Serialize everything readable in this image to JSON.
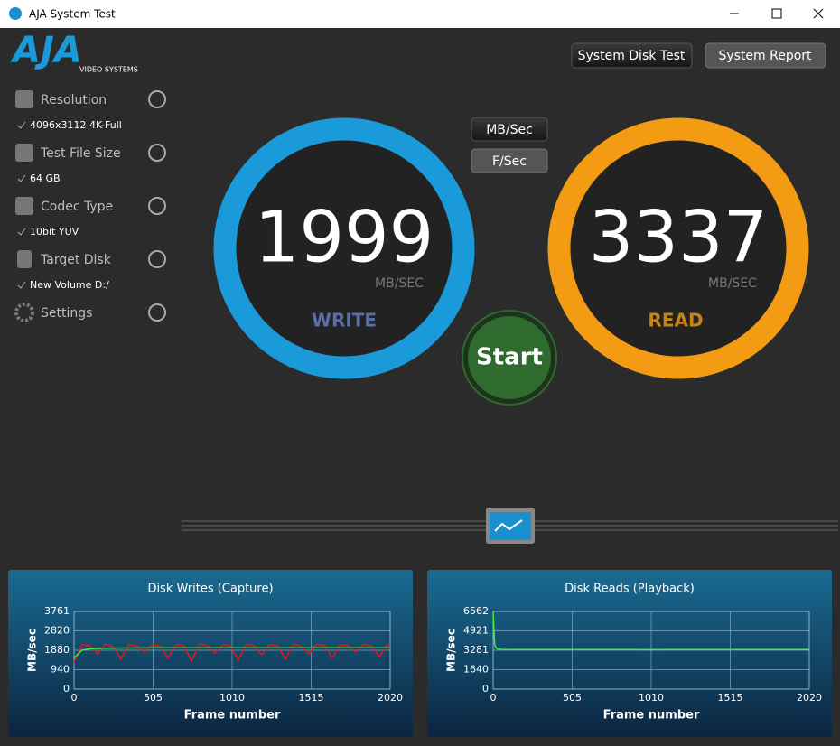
{
  "window_title": "AJA System Test",
  "logo": {
    "brand": "AJA",
    "sub": "VIDEO SYSTEMS"
  },
  "buttons": {
    "disk_test": "System Disk Test",
    "report": "System Report",
    "unit_mb": "MB/Sec",
    "unit_f": "F/Sec",
    "start": "Start"
  },
  "sidebar": [
    {
      "label": "Resolution",
      "value": "4096x3112 4K-Full"
    },
    {
      "label": "Test File Size",
      "value": "64 GB"
    },
    {
      "label": "Codec Type",
      "value": "10bit YUV"
    },
    {
      "label": "Target Disk",
      "value": "New Volume D:/"
    },
    {
      "label": "Settings"
    }
  ],
  "gauges": {
    "write": {
      "value": 1999,
      "unit": "MB/SEC",
      "label": "WRITE",
      "color": "#1a9ad8"
    },
    "read": {
      "value": 3337,
      "unit": "MB/SEC",
      "label": "READ",
      "color": "#f29b13"
    }
  },
  "chart_data": [
    {
      "type": "line",
      "title": "Disk Writes (Capture)",
      "x_label": "Frame number",
      "y_label": "MB/sec",
      "x": [
        0,
        50,
        100,
        150,
        200,
        250,
        300,
        350,
        400,
        450,
        500,
        550,
        600,
        650,
        700,
        750,
        800,
        850,
        900,
        950,
        1000,
        1050,
        1100,
        1150,
        1200,
        1250,
        1300,
        1350,
        1400,
        1450,
        1500,
        1550,
        1600,
        1650,
        1700,
        1750,
        1800,
        1850,
        1900,
        1950,
        2000,
        2020
      ],
      "series": [
        {
          "color": "#e8141b",
          "values": [
            1300,
            2150,
            2100,
            1700,
            2180,
            2050,
            1450,
            2160,
            2100,
            1800,
            2170,
            2080,
            1500,
            2150,
            2120,
            1350,
            2180,
            2100,
            1750,
            2160,
            2090,
            1400,
            2170,
            2110,
            1650,
            2150,
            2100,
            1450,
            2180,
            2090,
            1700,
            2160,
            2120,
            1500,
            2150,
            2100,
            1800,
            2170,
            2090,
            1550,
            2140,
            2120
          ]
        },
        {
          "color": "#3cf03c",
          "values": [
            1500,
            1880,
            1950,
            1970,
            1980,
            1985,
            1990,
            1992,
            1994,
            1995,
            1999,
            1999,
            1999,
            1999,
            1999,
            1999,
            1999,
            1999,
            1999,
            1999,
            1999,
            1999,
            1999,
            1999,
            1999,
            1999,
            1999,
            1999,
            1999,
            1999,
            1999,
            1999,
            1999,
            1999,
            1999,
            1999,
            1999,
            1999,
            1999,
            1999,
            1999,
            1999
          ]
        }
      ],
      "xlim": [
        0,
        2020
      ],
      "xticks": [
        0,
        505,
        1010,
        1515,
        2020
      ],
      "ylim": [
        0,
        3761
      ],
      "yticks": [
        0,
        940,
        1880,
        2820,
        3761
      ],
      "grid": true
    },
    {
      "type": "line",
      "title": "Disk Reads (Playback)",
      "x_label": "Frame number",
      "y_label": "MB/sec",
      "x": [
        0,
        10,
        25,
        50,
        100,
        200,
        300,
        400,
        500,
        600,
        700,
        800,
        900,
        1000,
        1100,
        1200,
        1300,
        1400,
        1500,
        1600,
        1700,
        1800,
        1900,
        2000,
        2020
      ],
      "series": [
        {
          "color": "#3cf03c",
          "values": [
            6562,
            3700,
            3400,
            3350,
            3340,
            3337,
            3335,
            3338,
            3336,
            3337,
            3339,
            3335,
            3336,
            3330,
            3337,
            3338,
            3336,
            3337,
            3339,
            3336,
            3337,
            3338,
            3336,
            3337,
            3337
          ]
        }
      ],
      "xlim": [
        0,
        2020
      ],
      "xticks": [
        0,
        505,
        1010,
        1515,
        2020
      ],
      "ylim": [
        0,
        6562
      ],
      "yticks": [
        0,
        1640,
        3281,
        4921,
        6562
      ],
      "grid": true
    }
  ]
}
